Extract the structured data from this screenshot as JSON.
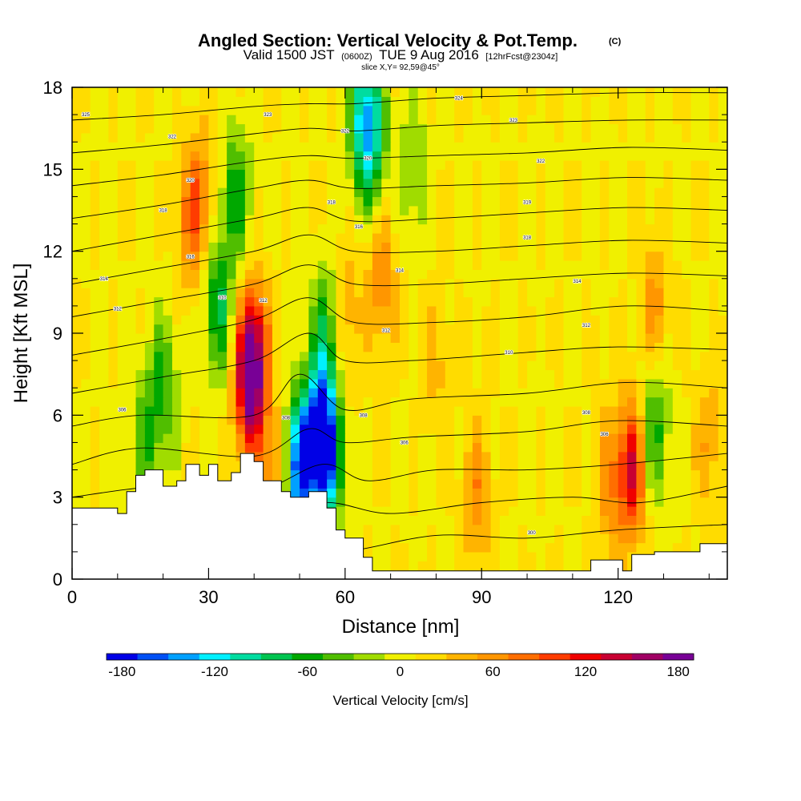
{
  "chart_data": {
    "type": "heatmap",
    "title": "Angled Section: Vertical Velocity & Pot.Temp.",
    "title_mark": "(C)",
    "subtitle": {
      "valid_prefix": "Valid 1500 JST",
      "zulu": "(0600Z)",
      "date": "TUE 9 Aug 2016",
      "forecast": "[12hrFcst@2304z]"
    },
    "slice_label": "slice X,Y= 92,59@45°",
    "xlabel": "Distance [nm]",
    "ylabel": "Height [Kft MSL]",
    "xlim": [
      0,
      144
    ],
    "ylim": [
      0,
      18
    ],
    "x_ticks": [
      "0",
      "30",
      "60",
      "90",
      "120"
    ],
    "y_ticks": [
      "0",
      "3",
      "6",
      "9",
      "12",
      "15",
      "18"
    ],
    "grid": false,
    "colorbar": {
      "label": "Vertical Velocity [cm/s]",
      "range": [
        -190,
        190
      ],
      "step": 20,
      "tick_labels": [
        "-180",
        "-120",
        "-60",
        "0",
        "60",
        "120",
        "180"
      ],
      "colors": [
        "#0000e6",
        "#0050f5",
        "#00a0ff",
        "#00f0ff",
        "#00dca0",
        "#00c450",
        "#00a800",
        "#50be00",
        "#a0dc00",
        "#f0f000",
        "#ffdc00",
        "#ffb400",
        "#ff9600",
        "#ff6e00",
        "#ff3c00",
        "#f00000",
        "#c80032",
        "#a00064",
        "#780096"
      ]
    },
    "velocity_features": [
      {
        "x": 39,
        "y": 7.0,
        "value": 140
      },
      {
        "x": 40,
        "y": 8.5,
        "value": 100
      },
      {
        "x": 50,
        "y": 4.0,
        "value": -170
      },
      {
        "x": 56,
        "y": 4.5,
        "value": -150
      },
      {
        "x": 54,
        "y": 5.5,
        "value": -120
      },
      {
        "x": 64,
        "y": 17.0,
        "value": -100
      },
      {
        "x": 66,
        "y": 16.0,
        "value": -80
      },
      {
        "x": 32,
        "y": 10.0,
        "value": -80
      },
      {
        "x": 36,
        "y": 14.0,
        "value": -70
      },
      {
        "x": 56,
        "y": 9.0,
        "value": -70
      },
      {
        "x": 28,
        "y": 14.0,
        "value": 55
      },
      {
        "x": 26,
        "y": 13.0,
        "value": 45
      },
      {
        "x": 68,
        "y": 11.0,
        "value": 60
      },
      {
        "x": 60,
        "y": 9.5,
        "value": 45
      },
      {
        "x": 123,
        "y": 4.0,
        "value": 120
      },
      {
        "x": 118,
        "y": 3.5,
        "value": 50
      },
      {
        "x": 89,
        "y": 3.0,
        "value": 55
      },
      {
        "x": 128,
        "y": 10.0,
        "value": 50
      },
      {
        "x": 128,
        "y": 5.5,
        "value": -70
      },
      {
        "x": 20,
        "y": 7.0,
        "value": -60
      },
      {
        "x": 16,
        "y": 5.0,
        "value": -50
      },
      {
        "x": 44,
        "y": 3.8,
        "value": 60
      },
      {
        "x": 140,
        "y": 5.0,
        "value": 40
      },
      {
        "x": 75,
        "y": 15.0,
        "value": -40
      },
      {
        "x": 80,
        "y": 8.0,
        "value": 30
      }
    ],
    "theta_contours": [
      {
        "level": "300",
        "points": [
          [
            0,
            0.8
          ],
          [
            20,
            1.0
          ],
          [
            40,
            0.8
          ],
          [
            60,
            1.0
          ],
          [
            80,
            1.6
          ],
          [
            100,
            1.5
          ],
          [
            120,
            1.8
          ],
          [
            144,
            2.0
          ]
        ]
      },
      {
        "level": "302",
        "points": [
          [
            0,
            1.8
          ],
          [
            20,
            2.2
          ],
          [
            40,
            2.0
          ],
          [
            55,
            2.8
          ],
          [
            70,
            2.4
          ],
          [
            90,
            2.8
          ],
          [
            110,
            3.0
          ],
          [
            125,
            2.8
          ],
          [
            144,
            3.4
          ]
        ]
      },
      {
        "level": "304",
        "points": [
          [
            0,
            3.0
          ],
          [
            20,
            3.4
          ],
          [
            40,
            3.2
          ],
          [
            55,
            4.2
          ],
          [
            65,
            3.6
          ],
          [
            80,
            4.0
          ],
          [
            100,
            4.0
          ],
          [
            120,
            4.2
          ],
          [
            144,
            4.6
          ]
        ]
      },
      {
        "level": "306",
        "points": [
          [
            0,
            4.2
          ],
          [
            15,
            4.8
          ],
          [
            40,
            4.5
          ],
          [
            52,
            5.5
          ],
          [
            60,
            5.0
          ],
          [
            75,
            5.2
          ],
          [
            100,
            5.4
          ],
          [
            120,
            5.8
          ],
          [
            144,
            5.6
          ]
        ]
      },
      {
        "level": "308",
        "points": [
          [
            0,
            5.6
          ],
          [
            15,
            6.0
          ],
          [
            40,
            6.0
          ],
          [
            50,
            7.5
          ],
          [
            60,
            6.2
          ],
          [
            75,
            6.6
          ],
          [
            100,
            6.8
          ],
          [
            122,
            7.2
          ],
          [
            144,
            7.0
          ]
        ]
      },
      {
        "level": "310",
        "points": [
          [
            0,
            6.8
          ],
          [
            20,
            7.4
          ],
          [
            40,
            8.0
          ],
          [
            52,
            9.0
          ],
          [
            60,
            8.0
          ],
          [
            75,
            8.0
          ],
          [
            100,
            8.3
          ],
          [
            120,
            8.5
          ],
          [
            144,
            8.4
          ]
        ]
      },
      {
        "level": "312",
        "points": [
          [
            0,
            8.2
          ],
          [
            20,
            8.8
          ],
          [
            40,
            9.5
          ],
          [
            52,
            10.3
          ],
          [
            62,
            9.4
          ],
          [
            80,
            9.4
          ],
          [
            100,
            9.6
          ],
          [
            122,
            10.0
          ],
          [
            144,
            9.8
          ]
        ]
      },
      {
        "level": "314",
        "points": [
          [
            0,
            9.6
          ],
          [
            20,
            10.2
          ],
          [
            40,
            10.8
          ],
          [
            52,
            11.5
          ],
          [
            62,
            10.8
          ],
          [
            80,
            10.8
          ],
          [
            100,
            11.0
          ],
          [
            122,
            11.2
          ],
          [
            144,
            11.1
          ]
        ]
      },
      {
        "level": "316",
        "points": [
          [
            0,
            10.8
          ],
          [
            20,
            11.4
          ],
          [
            40,
            12.0
          ],
          [
            52,
            12.6
          ],
          [
            62,
            12.0
          ],
          [
            80,
            12.0
          ],
          [
            100,
            12.2
          ],
          [
            122,
            12.4
          ],
          [
            144,
            12.3
          ]
        ]
      },
      {
        "level": "318",
        "points": [
          [
            0,
            12.0
          ],
          [
            20,
            12.6
          ],
          [
            40,
            13.2
          ],
          [
            52,
            13.6
          ],
          [
            62,
            13.1
          ],
          [
            80,
            13.2
          ],
          [
            100,
            13.4
          ],
          [
            122,
            13.6
          ],
          [
            144,
            13.5
          ]
        ]
      },
      {
        "level": "320",
        "points": [
          [
            0,
            13.2
          ],
          [
            20,
            13.7
          ],
          [
            40,
            14.3
          ],
          [
            52,
            14.6
          ],
          [
            62,
            14.3
          ],
          [
            80,
            14.4
          ],
          [
            100,
            14.5
          ],
          [
            122,
            14.7
          ],
          [
            144,
            14.6
          ]
        ]
      },
      {
        "level": "322",
        "points": [
          [
            0,
            14.4
          ],
          [
            20,
            14.8
          ],
          [
            40,
            15.3
          ],
          [
            52,
            15.5
          ],
          [
            62,
            15.4
          ],
          [
            80,
            15.5
          ],
          [
            100,
            15.6
          ],
          [
            122,
            15.8
          ],
          [
            144,
            15.7
          ]
        ]
      },
      {
        "level": "324",
        "points": [
          [
            0,
            15.6
          ],
          [
            20,
            15.9
          ],
          [
            40,
            16.3
          ],
          [
            52,
            16.5
          ],
          [
            62,
            16.4
          ],
          [
            80,
            16.6
          ],
          [
            100,
            16.7
          ],
          [
            122,
            16.8
          ],
          [
            144,
            16.8
          ]
        ]
      },
      {
        "level": "326",
        "points": [
          [
            0,
            16.8
          ],
          [
            20,
            17.0
          ],
          [
            40,
            17.3
          ],
          [
            52,
            17.4
          ],
          [
            62,
            17.4
          ],
          [
            80,
            17.6
          ],
          [
            100,
            17.7
          ],
          [
            122,
            17.8
          ],
          [
            144,
            17.8
          ]
        ]
      }
    ],
    "terrain": [
      [
        0,
        2.6
      ],
      [
        10,
        2.6
      ],
      [
        10,
        2.4
      ],
      [
        12,
        2.4
      ],
      [
        12,
        3.2
      ],
      [
        14,
        3.2
      ],
      [
        14,
        3.8
      ],
      [
        16,
        3.8
      ],
      [
        16,
        4.0
      ],
      [
        20,
        4.0
      ],
      [
        20,
        3.4
      ],
      [
        23,
        3.4
      ],
      [
        23,
        3.6
      ],
      [
        25,
        3.6
      ],
      [
        25,
        4.2
      ],
      [
        28,
        4.2
      ],
      [
        28,
        3.8
      ],
      [
        30,
        3.8
      ],
      [
        30,
        4.2
      ],
      [
        32,
        4.2
      ],
      [
        32,
        3.6
      ],
      [
        35,
        3.6
      ],
      [
        35,
        3.9
      ],
      [
        37,
        3.9
      ],
      [
        37,
        4.6
      ],
      [
        40,
        4.6
      ],
      [
        40,
        4.3
      ],
      [
        42,
        4.3
      ],
      [
        42,
        3.6
      ],
      [
        46,
        3.6
      ],
      [
        46,
        3.2
      ],
      [
        48,
        3.2
      ],
      [
        48,
        3.0
      ],
      [
        52,
        3.0
      ],
      [
        52,
        3.2
      ],
      [
        56,
        3.2
      ],
      [
        56,
        2.6
      ],
      [
        58,
        2.6
      ],
      [
        58,
        1.8
      ],
      [
        60,
        1.8
      ],
      [
        60,
        1.5
      ],
      [
        64,
        1.5
      ],
      [
        64,
        0.8
      ],
      [
        66,
        0.8
      ],
      [
        66,
        0.3
      ],
      [
        114,
        0.3
      ],
      [
        114,
        0.7
      ],
      [
        121,
        0.7
      ],
      [
        121,
        0.3
      ],
      [
        123,
        0.3
      ],
      [
        123,
        0.9
      ],
      [
        128,
        0.9
      ],
      [
        128,
        1.0
      ],
      [
        138,
        1.0
      ],
      [
        138,
        1.3
      ],
      [
        144,
        1.3
      ],
      [
        144,
        0
      ],
      [
        0,
        0
      ]
    ],
    "contour_labels": [
      {
        "x": 3,
        "y": 17.0,
        "text": "325"
      },
      {
        "x": 22,
        "y": 16.2,
        "text": "322"
      },
      {
        "x": 26,
        "y": 14.6,
        "text": "320"
      },
      {
        "x": 20,
        "y": 13.5,
        "text": "318"
      },
      {
        "x": 26,
        "y": 11.8,
        "text": "316"
      },
      {
        "x": 7,
        "y": 11.0,
        "text": "314"
      },
      {
        "x": 10,
        "y": 9.9,
        "text": "312"
      },
      {
        "x": 33,
        "y": 10.3,
        "text": "310"
      },
      {
        "x": 11,
        "y": 6.2,
        "text": "306"
      },
      {
        "x": 42,
        "y": 10.2,
        "text": "312"
      },
      {
        "x": 43,
        "y": 17.0,
        "text": "323"
      },
      {
        "x": 60,
        "y": 16.4,
        "text": "322"
      },
      {
        "x": 65,
        "y": 15.4,
        "text": "320"
      },
      {
        "x": 57,
        "y": 13.8,
        "text": "318"
      },
      {
        "x": 63,
        "y": 12.9,
        "text": "316"
      },
      {
        "x": 72,
        "y": 11.3,
        "text": "314"
      },
      {
        "x": 69,
        "y": 9.1,
        "text": "312"
      },
      {
        "x": 47,
        "y": 5.9,
        "text": "308"
      },
      {
        "x": 64,
        "y": 6.0,
        "text": "308"
      },
      {
        "x": 73,
        "y": 5.0,
        "text": "306"
      },
      {
        "x": 85,
        "y": 17.6,
        "text": "324"
      },
      {
        "x": 97,
        "y": 16.8,
        "text": "323"
      },
      {
        "x": 103,
        "y": 15.3,
        "text": "322"
      },
      {
        "x": 100,
        "y": 13.8,
        "text": "319"
      },
      {
        "x": 100,
        "y": 12.5,
        "text": "318"
      },
      {
        "x": 111,
        "y": 10.9,
        "text": "314"
      },
      {
        "x": 113,
        "y": 9.3,
        "text": "312"
      },
      {
        "x": 96,
        "y": 8.3,
        "text": "310"
      },
      {
        "x": 113,
        "y": 6.1,
        "text": "308"
      },
      {
        "x": 117,
        "y": 5.3,
        "text": "306"
      },
      {
        "x": 101,
        "y": 1.7,
        "text": "300"
      }
    ]
  }
}
